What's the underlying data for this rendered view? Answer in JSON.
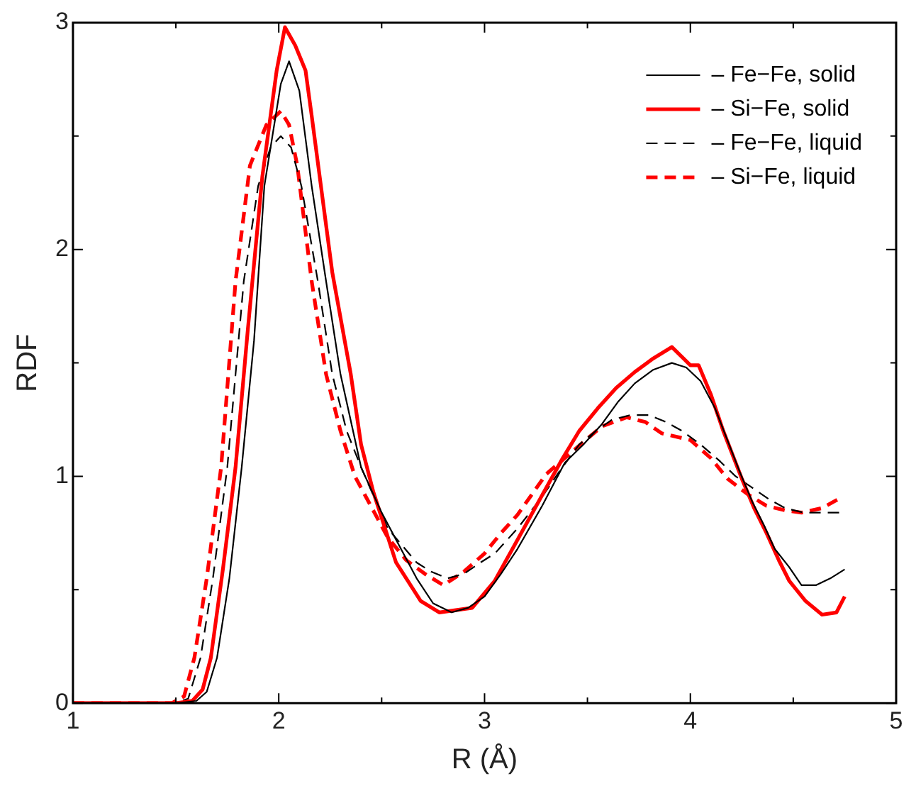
{
  "chart_data": {
    "type": "line",
    "xlabel": "R (Å)",
    "ylabel": "RDF",
    "xlim": [
      1,
      5
    ],
    "ylim": [
      0,
      3
    ],
    "xticks": [
      1,
      {
        "value": 1.5,
        "label": null
      },
      2,
      {
        "value": 2.5,
        "label": null
      },
      3,
      {
        "value": 3.5,
        "label": null
      },
      4,
      {
        "value": 4.5,
        "label": null
      },
      5
    ],
    "yticks": [
      0,
      {
        "value": 0.5,
        "label": null
      },
      1,
      {
        "value": 1.5,
        "label": null
      },
      2,
      {
        "value": 2.5,
        "label": null
      },
      3
    ],
    "grid": false,
    "legend": "top right",
    "marker": "none",
    "series": [
      {
        "name": "– Fe−Fe, solid",
        "color": "#000000",
        "line_style": "solid",
        "x": [
          1.0,
          1.5,
          1.6,
          1.65,
          1.7,
          1.76,
          1.82,
          1.88,
          1.93,
          2.01,
          2.05,
          2.1,
          2.16,
          2.23,
          2.3,
          2.4,
          2.5,
          2.67,
          2.75,
          2.84,
          2.92,
          3.0,
          3.08,
          3.16,
          3.28,
          3.39,
          3.48,
          3.57,
          3.65,
          3.73,
          3.82,
          3.91,
          3.98,
          4.05,
          4.12,
          4.18,
          4.24,
          4.3,
          4.36,
          4.41,
          4.48,
          4.54,
          4.61,
          4.68,
          4.75
        ],
        "values": [
          0,
          0,
          0.01,
          0.05,
          0.2,
          0.55,
          1.04,
          1.6,
          2.28,
          2.73,
          2.83,
          2.7,
          2.28,
          1.86,
          1.45,
          1.04,
          0.84,
          0.55,
          0.44,
          0.4,
          0.42,
          0.47,
          0.57,
          0.68,
          0.87,
          1.06,
          1.14,
          1.23,
          1.33,
          1.41,
          1.47,
          1.5,
          1.48,
          1.42,
          1.3,
          1.16,
          1.02,
          0.89,
          0.78,
          0.68,
          0.6,
          0.52,
          0.52,
          0.55,
          0.59
        ]
      },
      {
        "name": "– Si−Fe, solid",
        "color": "#ff0000",
        "line_style": "solid",
        "x": [
          1.0,
          1.5,
          1.58,
          1.63,
          1.67,
          1.73,
          1.79,
          1.85,
          1.92,
          1.99,
          2.03,
          2.08,
          2.13,
          2.16,
          2.26,
          2.35,
          2.4,
          2.46,
          2.57,
          2.69,
          2.78,
          2.86,
          2.94,
          3.05,
          3.16,
          3.3,
          3.38,
          3.46,
          3.55,
          3.64,
          3.73,
          3.82,
          3.91,
          4.0,
          4.04,
          4.1,
          4.16,
          4.25,
          4.31,
          4.37,
          4.43,
          4.48,
          4.56,
          4.64,
          4.71,
          4.75
        ],
        "values": [
          0,
          0,
          0.01,
          0.06,
          0.2,
          0.6,
          1.04,
          1.65,
          2.32,
          2.79,
          2.98,
          2.9,
          2.79,
          2.59,
          1.9,
          1.45,
          1.14,
          0.93,
          0.62,
          0.45,
          0.4,
          0.41,
          0.42,
          0.54,
          0.72,
          0.95,
          1.08,
          1.2,
          1.3,
          1.39,
          1.46,
          1.52,
          1.57,
          1.49,
          1.49,
          1.36,
          1.2,
          0.99,
          0.86,
          0.75,
          0.63,
          0.54,
          0.45,
          0.39,
          0.4,
          0.47
        ]
      },
      {
        "name": "– Fe−Fe, liquid",
        "color": "#000000",
        "line_style": "dashed",
        "x": [
          1.0,
          1.5,
          1.56,
          1.62,
          1.68,
          1.75,
          1.83,
          1.9,
          1.96,
          2.01,
          2.06,
          2.11,
          2.19,
          2.26,
          2.33,
          2.4,
          2.53,
          2.67,
          2.74,
          2.82,
          2.9,
          2.98,
          3.05,
          3.16,
          3.28,
          3.37,
          3.46,
          3.54,
          3.62,
          3.71,
          3.8,
          3.88,
          3.96,
          4.05,
          4.14,
          4.22,
          4.3,
          4.38,
          4.46,
          4.55,
          4.64,
          4.74
        ],
        "values": [
          0,
          0,
          0.02,
          0.2,
          0.55,
          1.04,
          1.86,
          2.28,
          2.45,
          2.5,
          2.45,
          2.28,
          1.86,
          1.45,
          1.2,
          1.04,
          0.77,
          0.62,
          0.58,
          0.55,
          0.57,
          0.62,
          0.66,
          0.77,
          0.91,
          1.03,
          1.14,
          1.2,
          1.25,
          1.27,
          1.27,
          1.24,
          1.2,
          1.14,
          1.07,
          1.0,
          0.95,
          0.9,
          0.86,
          0.84,
          0.84,
          0.84
        ]
      },
      {
        "name": "– Si−Fe, liquid",
        "color": "#ff0000",
        "line_style": "dashed",
        "x": [
          1.0,
          1.48,
          1.54,
          1.59,
          1.65,
          1.72,
          1.79,
          1.86,
          1.94,
          2.01,
          2.05,
          2.09,
          2.16,
          2.23,
          2.3,
          2.37,
          2.53,
          2.62,
          2.71,
          2.8,
          2.9,
          3.0,
          3.08,
          3.16,
          3.23,
          3.3,
          3.44,
          3.57,
          3.69,
          3.78,
          3.86,
          4.0,
          4.1,
          4.18,
          4.28,
          4.37,
          4.46,
          4.54,
          4.64,
          4.74
        ],
        "values": [
          0,
          0,
          0.03,
          0.2,
          0.55,
          1.04,
          1.86,
          2.37,
          2.55,
          2.61,
          2.55,
          2.37,
          1.86,
          1.45,
          1.2,
          1.0,
          0.73,
          0.63,
          0.57,
          0.52,
          0.58,
          0.66,
          0.75,
          0.83,
          0.92,
          1.01,
          1.12,
          1.22,
          1.26,
          1.24,
          1.19,
          1.16,
          1.08,
          0.99,
          0.92,
          0.87,
          0.85,
          0.84,
          0.86,
          0.91
        ]
      }
    ]
  }
}
